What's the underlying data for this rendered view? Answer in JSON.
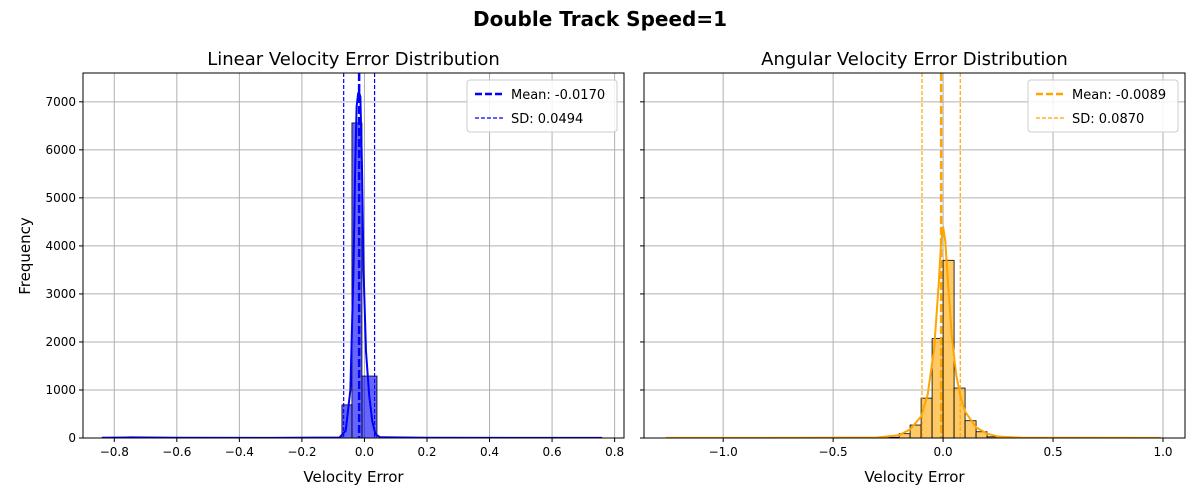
{
  "figure": {
    "suptitle": "Double Track Speed=1"
  },
  "chart_data": [
    {
      "type": "bar",
      "title": "Linear Velocity Error Distribution",
      "xlabel": "Velocity Error",
      "ylabel": "Frequency",
      "xlim": [
        -0.9,
        0.83
      ],
      "ylim": [
        0,
        7600
      ],
      "xticks": [
        -0.8,
        -0.6,
        -0.4,
        -0.2,
        0.0,
        0.2,
        0.4,
        0.6,
        0.8
      ],
      "xtick_labels": [
        "−0.8",
        "−0.6",
        "−0.4",
        "−0.2",
        "0.0",
        "0.2",
        "0.4",
        "0.6",
        "0.8"
      ],
      "yticks": [
        0,
        1000,
        2000,
        3000,
        4000,
        5000,
        6000,
        7000
      ],
      "ytick_labels": [
        "0",
        "1000",
        "2000",
        "3000",
        "4000",
        "5000",
        "6000",
        "7000"
      ],
      "grid": true,
      "legend_position": "top-right",
      "color": "#0000ff",
      "bins": [
        {
          "x0": -0.072,
          "x1": -0.04,
          "count": 690
        },
        {
          "x0": -0.04,
          "x1": -0.008,
          "count": 6560
        },
        {
          "x0": -0.008,
          "x1": 0.04,
          "count": 1290
        }
      ],
      "kde": [
        [
          -0.84,
          5
        ],
        [
          -0.75,
          12
        ],
        [
          -0.6,
          5
        ],
        [
          -0.3,
          3
        ],
        [
          -0.08,
          10
        ],
        [
          -0.06,
          150
        ],
        [
          -0.045,
          1000
        ],
        [
          -0.035,
          3500
        ],
        [
          -0.03,
          5500
        ],
        [
          -0.025,
          6900
        ],
        [
          -0.02,
          7180
        ],
        [
          -0.017,
          7200
        ],
        [
          -0.013,
          7100
        ],
        [
          -0.008,
          5700
        ],
        [
          -0.003,
          3500
        ],
        [
          0.005,
          1800
        ],
        [
          0.015,
          900
        ],
        [
          0.025,
          350
        ],
        [
          0.035,
          80
        ],
        [
          0.05,
          15
        ],
        [
          0.2,
          5
        ],
        [
          0.5,
          3
        ],
        [
          0.76,
          3
        ]
      ],
      "mean": -0.017,
      "sd": 0.0494,
      "mean_label": "Mean: -0.0170",
      "sd_label": "SD: 0.0494"
    },
    {
      "type": "bar",
      "title": "Angular Velocity Error Distribution",
      "xlabel": "Velocity Error",
      "ylabel": "",
      "xlim": [
        -1.36,
        1.1
      ],
      "ylim": [
        0,
        7600
      ],
      "xticks": [
        -1.0,
        -0.5,
        0.0,
        0.5,
        1.0
      ],
      "xtick_labels": [
        "−1.0",
        "−0.5",
        "0.0",
        "0.5",
        "1.0"
      ],
      "yticks": [
        0,
        1000,
        2000,
        3000,
        4000,
        5000,
        6000,
        7000
      ],
      "grid": true,
      "legend_position": "top-right",
      "color": "#ffa500",
      "bins": [
        {
          "x0": -0.25,
          "x1": -0.2,
          "count": 15
        },
        {
          "x0": -0.2,
          "x1": -0.15,
          "count": 90
        },
        {
          "x0": -0.15,
          "x1": -0.1,
          "count": 270
        },
        {
          "x0": -0.1,
          "x1": -0.05,
          "count": 830
        },
        {
          "x0": -0.05,
          "x1": 0.0,
          "count": 2070
        },
        {
          "x0": 0.0,
          "x1": 0.05,
          "count": 3700
        },
        {
          "x0": 0.05,
          "x1": 0.1,
          "count": 1040
        },
        {
          "x0": 0.1,
          "x1": 0.15,
          "count": 360
        },
        {
          "x0": 0.15,
          "x1": 0.2,
          "count": 130
        },
        {
          "x0": 0.2,
          "x1": 0.25,
          "count": 25
        }
      ],
      "kde": [
        [
          -1.26,
          2
        ],
        [
          -0.6,
          4
        ],
        [
          -0.3,
          10
        ],
        [
          -0.2,
          60
        ],
        [
          -0.15,
          180
        ],
        [
          -0.1,
          450
        ],
        [
          -0.07,
          900
        ],
        [
          -0.04,
          1900
        ],
        [
          -0.02,
          3200
        ],
        [
          -0.01,
          4000
        ],
        [
          0.0,
          4400
        ],
        [
          0.01,
          4100
        ],
        [
          0.02,
          3400
        ],
        [
          0.04,
          2100
        ],
        [
          0.06,
          1300
        ],
        [
          0.08,
          850
        ],
        [
          0.1,
          550
        ],
        [
          0.15,
          220
        ],
        [
          0.2,
          90
        ],
        [
          0.25,
          30
        ],
        [
          0.35,
          8
        ],
        [
          0.6,
          4
        ],
        [
          0.99,
          2
        ]
      ],
      "mean": -0.0089,
      "sd": 0.087,
      "mean_label": "Mean: -0.0089",
      "sd_label": "SD: 0.0870"
    }
  ]
}
